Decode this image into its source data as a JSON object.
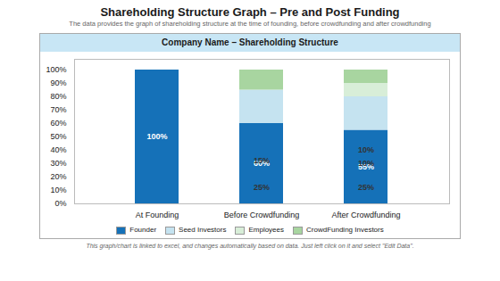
{
  "chart_data": {
    "type": "bar",
    "stacked": true,
    "title": "Shareholding Structure Graph – Pre and Post Funding",
    "subtitle": "The data provides the graph of shareholding structure at the time of founding, before crowdfunding and after crowdfunding",
    "annotations": [
      "Company Name – Shareholding Structure",
      "This graph/chart is linked to excel, and changes automatically based on data. Just left click on it and select \"Edit Data\"."
    ],
    "categories": [
      "At Founding",
      "Before Crowdfunding",
      "After Crowdfunding"
    ],
    "series": [
      {
        "name": "Founder",
        "color": "#1571B8",
        "values": [
          100,
          60,
          55
        ],
        "value_labels": [
          "100%",
          "60%",
          "55%"
        ]
      },
      {
        "name": "Seed Investors",
        "color": "#C5E3F0",
        "values": [
          0,
          25,
          25
        ],
        "value_labels": [
          null,
          "25%",
          "25%"
        ]
      },
      {
        "name": "Employees",
        "color": "#D8EED8",
        "values": [
          0,
          0,
          10
        ],
        "value_labels": [
          null,
          null,
          "10%"
        ]
      },
      {
        "name": "CrowdFunding Investors",
        "color": "#A8D5A0",
        "values": [
          0,
          15,
          10
        ],
        "value_labels": [
          null,
          "15%",
          "10%"
        ]
      }
    ],
    "ylim": [
      0,
      108
    ],
    "yticks": [
      {
        "value": 0,
        "label": "0%"
      },
      {
        "value": 10,
        "label": "10%"
      },
      {
        "value": 20,
        "label": "20%"
      },
      {
        "value": 30,
        "label": "30%"
      },
      {
        "value": 40,
        "label": "40%"
      },
      {
        "value": 50,
        "label": "50%"
      },
      {
        "value": 60,
        "label": "60%"
      },
      {
        "value": 70,
        "label": "70%"
      },
      {
        "value": 80,
        "label": "80%"
      },
      {
        "value": 90,
        "label": "90%"
      },
      {
        "value": 100,
        "label": "100%"
      }
    ],
    "grid": false,
    "legend": "bottom",
    "data_labels": true
  }
}
